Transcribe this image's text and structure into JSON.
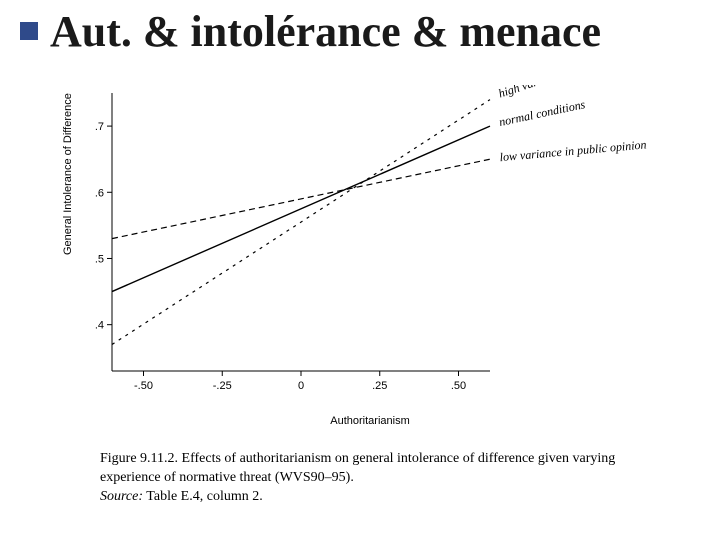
{
  "title": "Aut. & intolérance & menace",
  "bullet_color": "#2f4a8a",
  "chart": {
    "type": "line",
    "xlabel": "Authoritarianism",
    "ylabel": "General Intolerance of Difference",
    "label_fontsize": 11,
    "background_color": "#ffffff",
    "axis_color": "#000000",
    "x_ticks": [
      -0.5,
      -0.25,
      0,
      0.25,
      0.5
    ],
    "x_tick_labels": [
      "-.50",
      "-.25",
      "0",
      ".25",
      ".50"
    ],
    "y_ticks": [
      0.4,
      0.5,
      0.6,
      0.7
    ],
    "y_tick_labels": [
      ".4",
      ".5",
      ".6",
      ".7"
    ],
    "xlim": [
      -0.6,
      0.6
    ],
    "ylim": [
      0.33,
      0.75
    ],
    "series": [
      {
        "name": "high",
        "label": "high variance in public opinion",
        "dash": "3,5",
        "width": 1.2,
        "color": "#000000",
        "points": [
          [
            -0.6,
            0.37
          ],
          [
            0.6,
            0.74
          ]
        ],
        "label_angle": -18
      },
      {
        "name": "normal",
        "label": "normal conditions",
        "dash": "none",
        "width": 1.4,
        "color": "#000000",
        "points": [
          [
            -0.6,
            0.45
          ],
          [
            0.6,
            0.7
          ]
        ],
        "label_angle": -12
      },
      {
        "name": "low",
        "label": "low variance in public opinion",
        "dash": "6,4",
        "width": 1.2,
        "color": "#000000",
        "points": [
          [
            -0.6,
            0.53
          ],
          [
            0.6,
            0.65
          ]
        ],
        "label_angle": -5
      }
    ]
  },
  "caption": {
    "fig": "Figure 9.11.2.",
    "text": "Effects of authoritarianism on general intolerance of difference given varying experience of normative threat (WVS90–95).",
    "source_label": "Source:",
    "source_text": "Table E.4, column 2.",
    "fontsize": 14
  }
}
